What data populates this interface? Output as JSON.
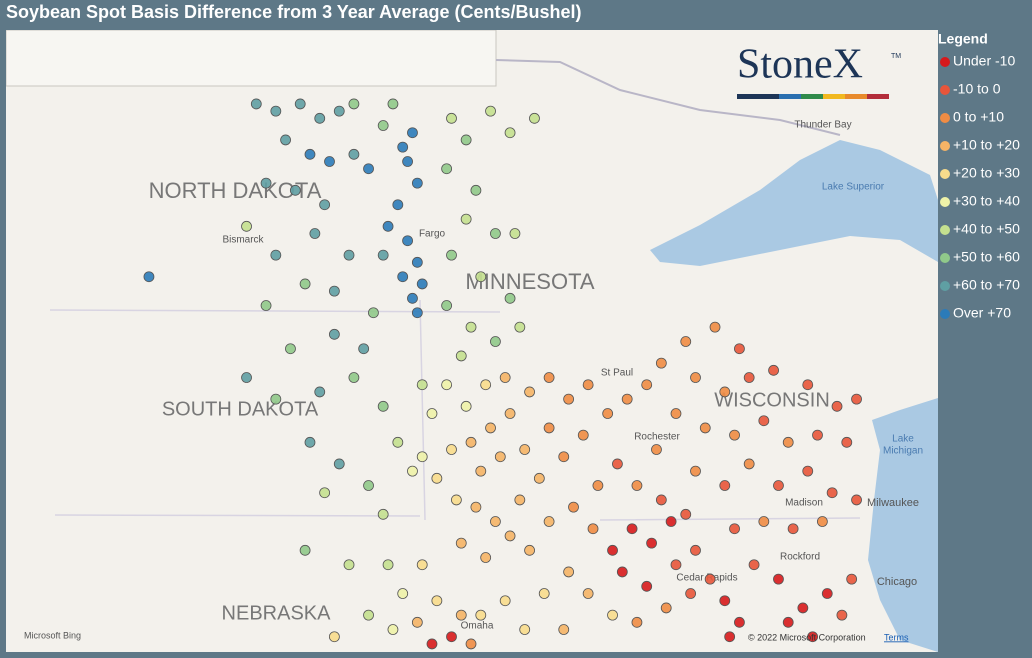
{
  "title": "Soybean Spot Basis Difference from 3 Year Average (Cents/Bushel)",
  "legend": {
    "title": "Legend",
    "items": [
      {
        "label": "Under -10",
        "color": "#d7191c"
      },
      {
        "label": "-10 to 0",
        "color": "#e8553a"
      },
      {
        "label": "0 to +10",
        "color": "#f08c44"
      },
      {
        "label": "+10 to +20",
        "color": "#f5b466"
      },
      {
        "label": "+20 to +30",
        "color": "#f8dc8c"
      },
      {
        "label": "+30 to +40",
        "color": "#eef2a8"
      },
      {
        "label": "+40 to +50",
        "color": "#c4e08f"
      },
      {
        "label": "+50 to +60",
        "color": "#90c98a"
      },
      {
        "label": "+60 to +70",
        "color": "#5f9fa3"
      },
      {
        "label": "Over +70",
        "color": "#2b7bb9"
      }
    ]
  },
  "place_labels": [
    "NORTH DAKOTA",
    "SOUTH DAKOTA",
    "MINNESOTA",
    "WISCONSIN",
    "NEBRASKA",
    "Bismarck",
    "Fargo",
    "St Paul",
    "Thunder Bay",
    "Lake Superior",
    "Lake",
    "Michigan",
    "Milwaukee",
    "Madison",
    "Rochester",
    "Cedar Rapids",
    "Rockford",
    "Chicago",
    "Omaha"
  ],
  "logo": {
    "text": "StoneX",
    "mark": "TM"
  },
  "attribution": {
    "provider": "Microsoft Bing",
    "copyright": "© 2022 Microsoft Corporation",
    "terms": "Terms"
  },
  "points": [
    [
      -100.2,
      48.7,
      8
    ],
    [
      -99.8,
      48.6,
      8
    ],
    [
      -99.3,
      48.7,
      8
    ],
    [
      -98.9,
      48.5,
      8
    ],
    [
      -98.5,
      48.6,
      8
    ],
    [
      -98.2,
      48.7,
      7
    ],
    [
      -99.6,
      48.2,
      8
    ],
    [
      -99.1,
      48.0,
      9
    ],
    [
      -98.7,
      47.9,
      9
    ],
    [
      -100.0,
      47.6,
      8
    ],
    [
      -99.4,
      47.5,
      8
    ],
    [
      -98.8,
      47.3,
      8
    ],
    [
      -98.2,
      48.0,
      8
    ],
    [
      -97.9,
      47.8,
      9
    ],
    [
      -97.6,
      48.4,
      7
    ],
    [
      -97.4,
      48.7,
      7
    ],
    [
      -97.2,
      48.1,
      9
    ],
    [
      -97.0,
      48.3,
      9
    ],
    [
      -97.1,
      47.9,
      9
    ],
    [
      -96.9,
      47.6,
      9
    ],
    [
      -97.3,
      47.3,
      9
    ],
    [
      -97.5,
      47.0,
      9
    ],
    [
      -97.1,
      46.8,
      9
    ],
    [
      -96.9,
      46.5,
      9
    ],
    [
      -97.2,
      46.3,
      9
    ],
    [
      -97.6,
      46.6,
      8
    ],
    [
      -96.8,
      46.2,
      9
    ],
    [
      -97.0,
      46.0,
      9
    ],
    [
      -96.9,
      45.8,
      9
    ],
    [
      -102.4,
      46.3,
      9
    ],
    [
      -100.4,
      47.0,
      6
    ],
    [
      -99.8,
      46.6,
      8
    ],
    [
      -99.0,
      46.9,
      8
    ],
    [
      -98.3,
      46.6,
      8
    ],
    [
      -98.6,
      46.1,
      8
    ],
    [
      -99.2,
      46.2,
      7
    ],
    [
      -100.0,
      45.9,
      7
    ],
    [
      -99.5,
      45.3,
      7
    ],
    [
      -98.6,
      45.5,
      8
    ],
    [
      -97.8,
      45.8,
      7
    ],
    [
      -98.0,
      45.3,
      8
    ],
    [
      -100.4,
      44.9,
      8
    ],
    [
      -99.8,
      44.6,
      7
    ],
    [
      -98.9,
      44.7,
      8
    ],
    [
      -98.2,
      44.9,
      7
    ],
    [
      -97.6,
      44.5,
      7
    ],
    [
      -99.1,
      44.0,
      8
    ],
    [
      -98.5,
      43.7,
      8
    ],
    [
      -97.9,
      43.4,
      7
    ],
    [
      -98.8,
      43.3,
      6
    ],
    [
      -97.6,
      43.0,
      6
    ],
    [
      -97.3,
      44.0,
      6
    ],
    [
      -97.0,
      43.6,
      5
    ],
    [
      -96.2,
      48.5,
      6
    ],
    [
      -95.9,
      48.2,
      7
    ],
    [
      -95.4,
      48.6,
      6
    ],
    [
      -95.0,
      48.3,
      6
    ],
    [
      -96.3,
      47.8,
      7
    ],
    [
      -95.7,
      47.5,
      7
    ],
    [
      -95.9,
      47.1,
      6
    ],
    [
      -95.3,
      46.9,
      7
    ],
    [
      -96.2,
      46.6,
      7
    ],
    [
      -95.6,
      46.3,
      6
    ],
    [
      -95.0,
      46.0,
      7
    ],
    [
      -96.3,
      45.9,
      7
    ],
    [
      -95.8,
      45.6,
      6
    ],
    [
      -95.3,
      45.4,
      7
    ],
    [
      -96.0,
      45.2,
      6
    ],
    [
      -94.8,
      45.6,
      6
    ],
    [
      -94.9,
      46.9,
      6
    ],
    [
      -94.5,
      48.5,
      6
    ],
    [
      -96.8,
      44.8,
      6
    ],
    [
      -96.6,
      44.4,
      5
    ],
    [
      -96.3,
      44.8,
      5
    ],
    [
      -95.9,
      44.5,
      5
    ],
    [
      -95.5,
      44.8,
      4
    ],
    [
      -95.1,
      44.9,
      3
    ],
    [
      -96.8,
      43.8,
      5
    ],
    [
      -96.5,
      43.5,
      4
    ],
    [
      -96.2,
      43.9,
      4
    ],
    [
      -95.8,
      44.0,
      3
    ],
    [
      -95.4,
      44.2,
      3
    ],
    [
      -95.0,
      44.4,
      3
    ],
    [
      -94.6,
      44.7,
      3
    ],
    [
      -94.2,
      44.9,
      2
    ],
    [
      -95.6,
      43.6,
      3
    ],
    [
      -95.2,
      43.8,
      3
    ],
    [
      -94.7,
      43.9,
      3
    ],
    [
      -94.2,
      44.2,
      2
    ],
    [
      -93.8,
      44.6,
      2
    ],
    [
      -93.4,
      44.8,
      2
    ],
    [
      -96.1,
      43.2,
      4
    ],
    [
      -95.7,
      43.1,
      3
    ],
    [
      -95.3,
      42.9,
      3
    ],
    [
      -94.8,
      43.2,
      3
    ],
    [
      -94.4,
      43.5,
      3
    ],
    [
      -93.9,
      43.8,
      2
    ],
    [
      -93.5,
      44.1,
      2
    ],
    [
      -93.0,
      44.4,
      2
    ],
    [
      -92.6,
      44.6,
      2
    ],
    [
      -92.2,
      44.8,
      2
    ],
    [
      -96.0,
      42.6,
      3
    ],
    [
      -95.5,
      42.4,
      3
    ],
    [
      -95.0,
      42.7,
      3
    ],
    [
      -94.6,
      42.5,
      3
    ],
    [
      -94.2,
      42.9,
      3
    ],
    [
      -93.7,
      43.1,
      2
    ],
    [
      -93.2,
      43.4,
      2
    ],
    [
      -92.8,
      43.7,
      1
    ],
    [
      -92.4,
      43.4,
      2
    ],
    [
      -92.0,
      43.9,
      2
    ],
    [
      -93.3,
      42.8,
      2
    ],
    [
      -92.9,
      42.5,
      0
    ],
    [
      -92.5,
      42.8,
      0
    ],
    [
      -92.1,
      42.6,
      0
    ],
    [
      -91.7,
      42.9,
      0
    ],
    [
      -91.9,
      43.2,
      1
    ],
    [
      -91.4,
      43.0,
      1
    ],
    [
      -92.7,
      42.2,
      0
    ],
    [
      -92.2,
      42.0,
      0
    ],
    [
      -91.6,
      42.3,
      1
    ],
    [
      -91.2,
      42.5,
      1
    ],
    [
      -93.8,
      42.2,
      3
    ],
    [
      -94.3,
      41.9,
      4
    ],
    [
      -93.4,
      41.9,
      3
    ],
    [
      -92.9,
      41.6,
      4
    ],
    [
      -95.1,
      41.8,
      4
    ],
    [
      -95.6,
      41.6,
      4
    ],
    [
      -94.7,
      41.4,
      4
    ],
    [
      -93.9,
      41.4,
      3
    ],
    [
      -92.4,
      41.5,
      2
    ],
    [
      -91.8,
      41.7,
      2
    ],
    [
      -91.3,
      41.9,
      1
    ],
    [
      -90.9,
      42.1,
      1
    ],
    [
      -90.6,
      41.8,
      0
    ],
    [
      -90.3,
      41.5,
      0
    ],
    [
      -91.4,
      45.4,
      2
    ],
    [
      -90.8,
      45.6,
      2
    ],
    [
      -90.3,
      45.3,
      1
    ],
    [
      -91.9,
      45.1,
      2
    ],
    [
      -91.2,
      44.9,
      2
    ],
    [
      -90.6,
      44.7,
      2
    ],
    [
      -90.1,
      44.9,
      1
    ],
    [
      -89.6,
      45.0,
      1
    ],
    [
      -88.9,
      44.8,
      1
    ],
    [
      -88.3,
      44.5,
      1
    ],
    [
      -91.6,
      44.4,
      2
    ],
    [
      -91.0,
      44.2,
      2
    ],
    [
      -90.4,
      44.1,
      2
    ],
    [
      -89.8,
      44.3,
      1
    ],
    [
      -89.3,
      44.0,
      2
    ],
    [
      -88.7,
      44.1,
      1
    ],
    [
      -88.1,
      44.0,
      1
    ],
    [
      -87.9,
      44.6,
      1
    ],
    [
      -91.2,
      43.6,
      2
    ],
    [
      -90.6,
      43.4,
      1
    ],
    [
      -90.1,
      43.7,
      2
    ],
    [
      -89.5,
      43.4,
      1
    ],
    [
      -88.9,
      43.6,
      1
    ],
    [
      -88.4,
      43.3,
      1
    ],
    [
      -87.9,
      43.2,
      1
    ],
    [
      -90.4,
      42.8,
      1
    ],
    [
      -89.8,
      42.9,
      2
    ],
    [
      -89.2,
      42.8,
      1
    ],
    [
      -88.6,
      42.9,
      2
    ],
    [
      -90.0,
      42.3,
      1
    ],
    [
      -89.5,
      42.1,
      0
    ],
    [
      -89.0,
      41.7,
      0
    ],
    [
      -88.5,
      41.9,
      0
    ],
    [
      -89.3,
      41.5,
      0
    ],
    [
      -88.8,
      41.3,
      0
    ],
    [
      -88.2,
      41.6,
      1
    ],
    [
      -88.0,
      42.1,
      1
    ],
    [
      -90.5,
      41.3,
      0
    ],
    [
      -97.5,
      42.3,
      6
    ],
    [
      -97.2,
      41.9,
      5
    ],
    [
      -96.8,
      42.3,
      4
    ],
    [
      -96.5,
      41.8,
      4
    ],
    [
      -96.9,
      41.5,
      3
    ],
    [
      -97.4,
      41.4,
      5
    ],
    [
      -96.2,
      41.3,
      0
    ],
    [
      -96.6,
      41.2,
      0
    ],
    [
      -96.0,
      41.6,
      3
    ],
    [
      -95.8,
      41.2,
      2
    ],
    [
      -97.9,
      41.6,
      6
    ],
    [
      -98.3,
      42.3,
      6
    ],
    [
      -99.2,
      42.5,
      7
    ],
    [
      -98.6,
      41.3,
      4
    ]
  ]
}
